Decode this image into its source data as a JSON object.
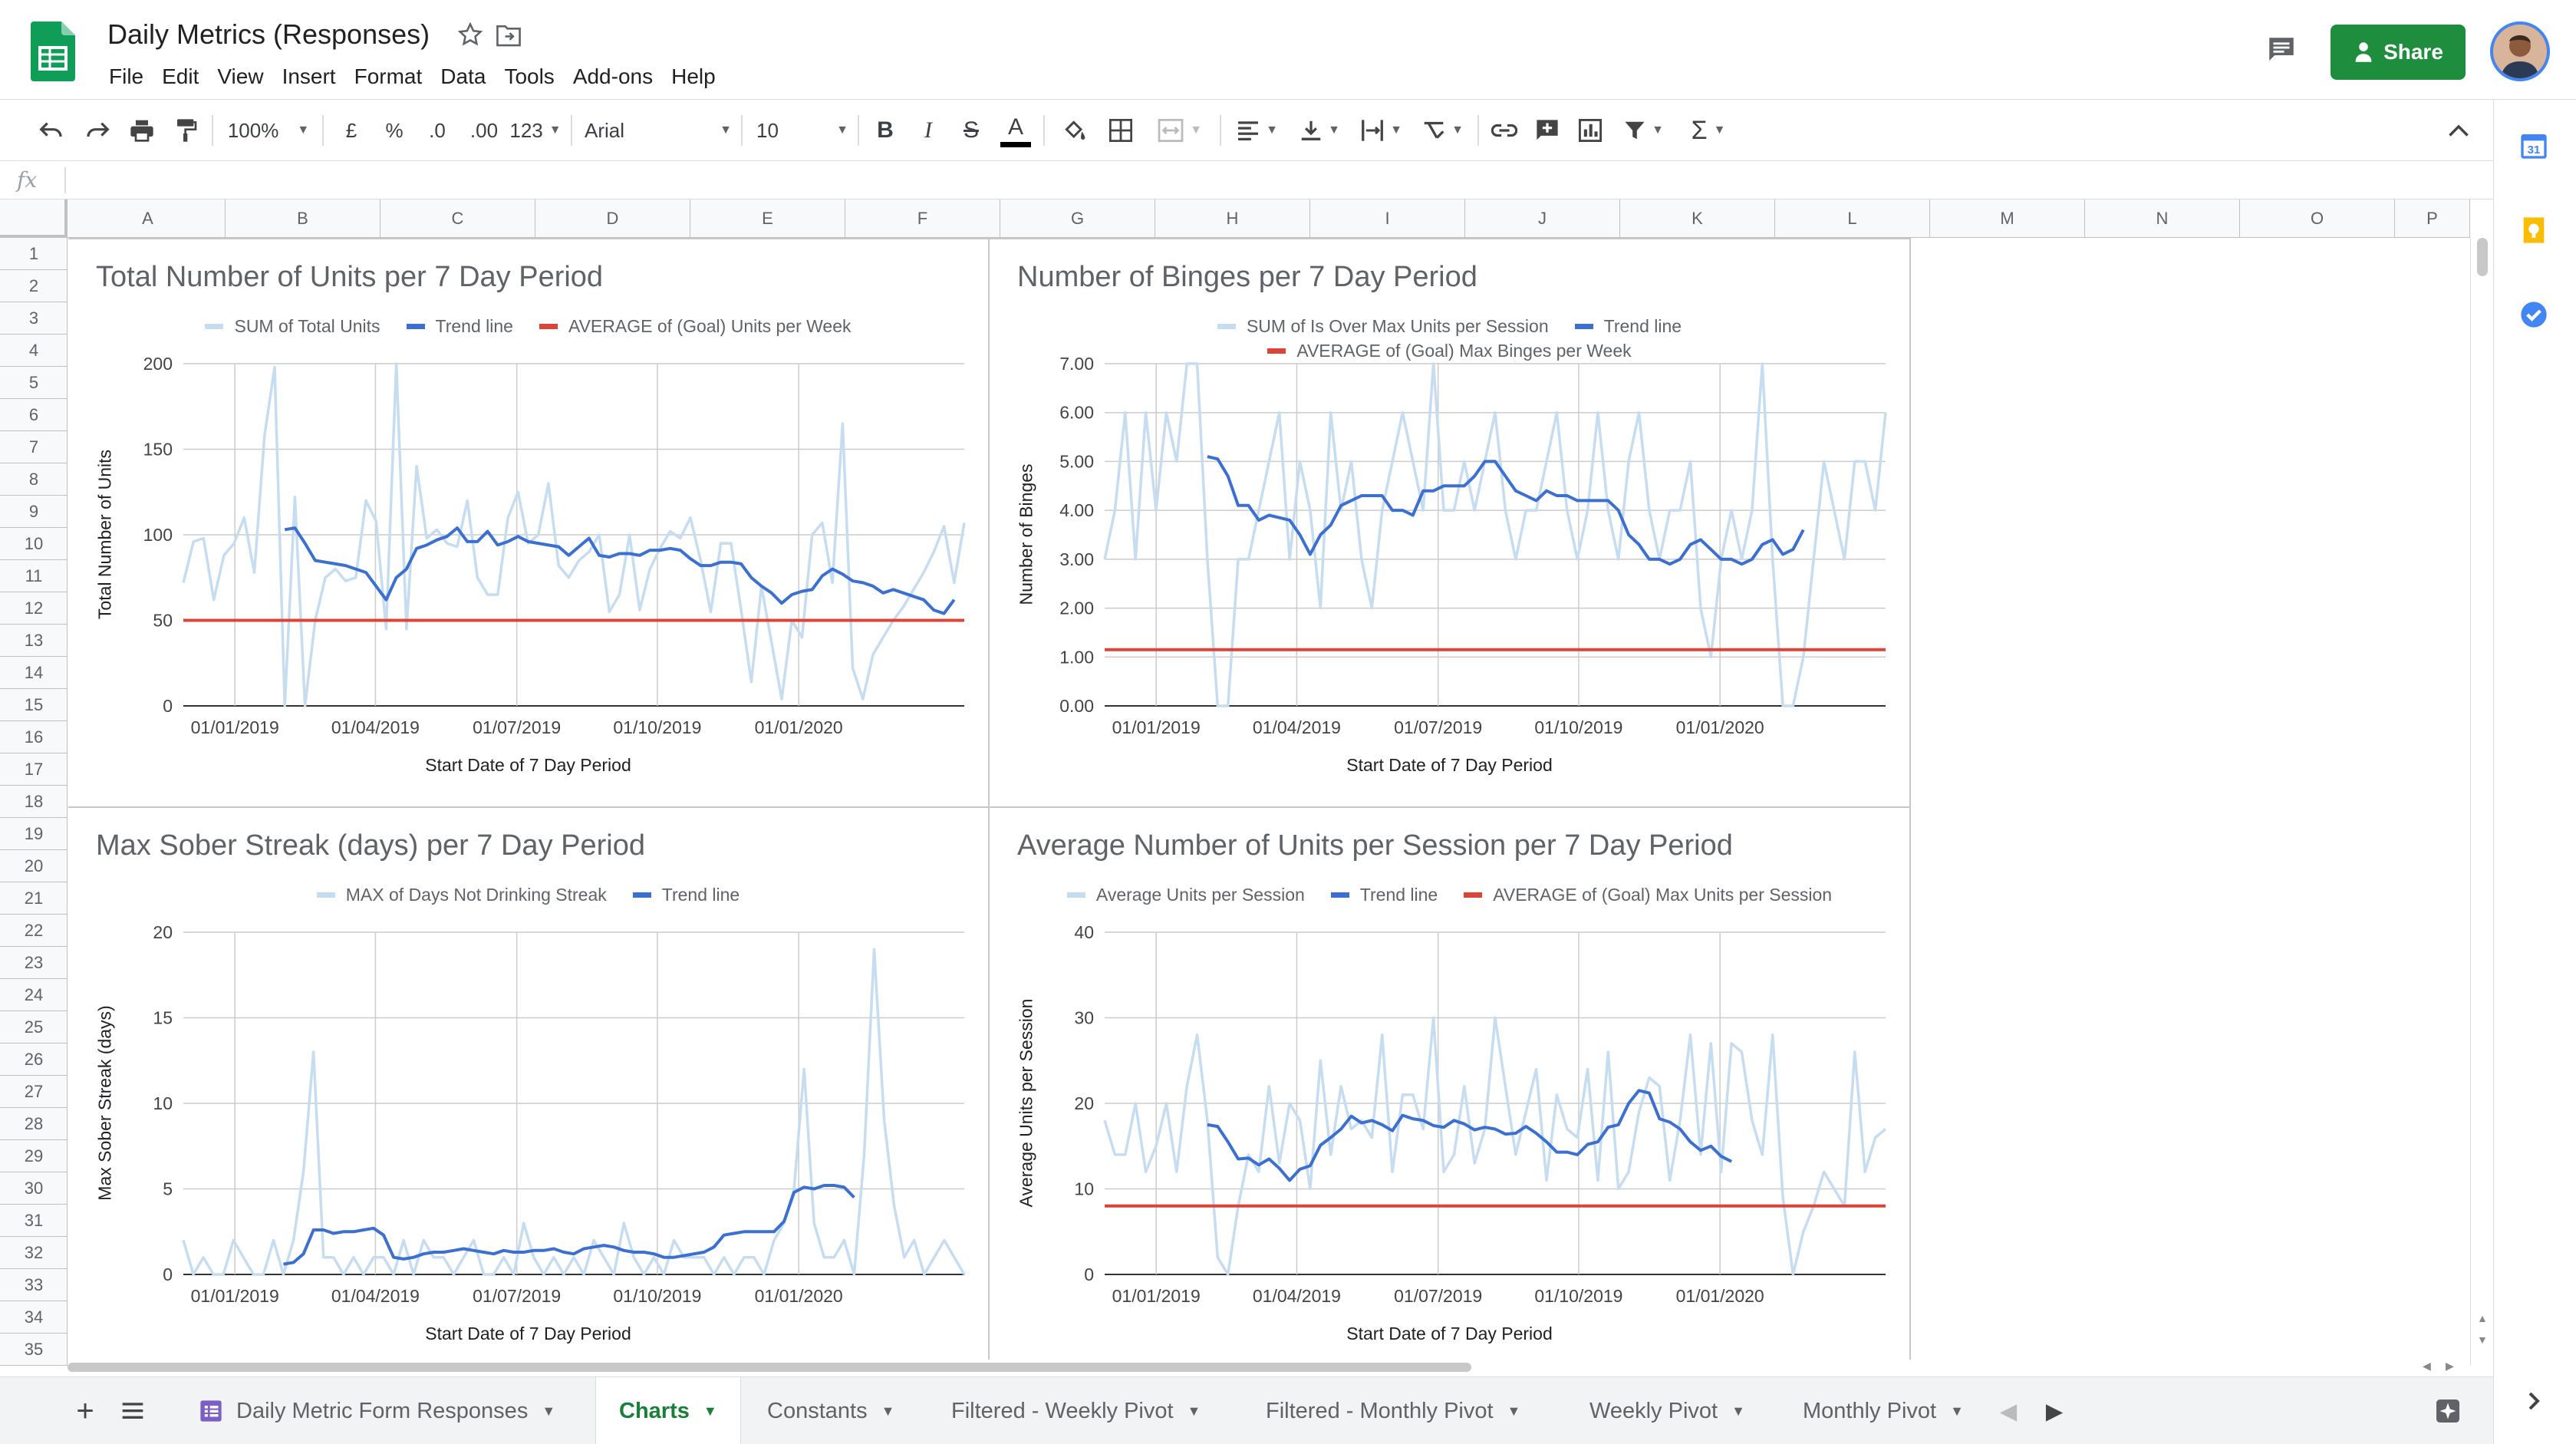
{
  "header": {
    "title": "Daily Metrics (Responses)",
    "menu": [
      "File",
      "Edit",
      "View",
      "Insert",
      "Format",
      "Data",
      "Tools",
      "Add-ons",
      "Help"
    ],
    "share_label": "Share"
  },
  "toolbar": {
    "zoom": "100%",
    "currency": "£",
    "percent": "%",
    "dec_decrease": ".0",
    "dec_increase": ".00",
    "more_formats": "123",
    "font": "Arial",
    "font_size": "10",
    "bold": "B",
    "italic": "I",
    "strike": "S",
    "text_color": "A",
    "sum": "Σ"
  },
  "formula_bar": {
    "fx": "fx",
    "value": ""
  },
  "columns": [
    "A",
    "B",
    "C",
    "D",
    "E",
    "F",
    "G",
    "H",
    "I",
    "J",
    "K",
    "L",
    "M",
    "N",
    "O",
    "P"
  ],
  "rows": [
    "1",
    "2",
    "3",
    "4",
    "5",
    "6",
    "7",
    "8",
    "9",
    "10",
    "11",
    "12",
    "13",
    "14",
    "15",
    "16",
    "17",
    "18",
    "19",
    "20",
    "21",
    "22",
    "23",
    "24",
    "25",
    "26",
    "27",
    "28",
    "29",
    "30",
    "31",
    "32",
    "33",
    "34",
    "35"
  ],
  "colors": {
    "raw_series": "#c6dcf0",
    "trend": "#3b6fd0",
    "goal": "#db4437",
    "grid": "#cccccc",
    "share_green": "#1e8e3e",
    "active_tab": "#188038"
  },
  "chart_data": [
    {
      "type": "line",
      "title": "Total Number of Units per 7 Day Period",
      "xlabel": "Start Date of 7 Day Period",
      "ylabel": "Total Number of Units",
      "x_ticks": [
        "01/01/2019",
        "01/04/2019",
        "01/07/2019",
        "01/10/2019",
        "01/01/2020"
      ],
      "y_ticks": [
        "0",
        "50",
        "100",
        "150",
        "200"
      ],
      "ylim": [
        0,
        200
      ],
      "grid": true,
      "legend_position": "top",
      "series": [
        {
          "name": "SUM of Total Units",
          "color": "#c6dcf0",
          "values": [
            72,
            96,
            98,
            62,
            88,
            95,
            110,
            78,
            158,
            198,
            0,
            122,
            0,
            50,
            75,
            80,
            73,
            75,
            120,
            108,
            45,
            200,
            45,
            140,
            98,
            103,
            95,
            93,
            120,
            75,
            65,
            65,
            110,
            125,
            95,
            100,
            130,
            82,
            75,
            85,
            90,
            100,
            55,
            65,
            100,
            56,
            80,
            92,
            102,
            98,
            110,
            85,
            55,
            95,
            95,
            56,
            14,
            70,
            37,
            4,
            50,
            40,
            100,
            107,
            72,
            165,
            22,
            4,
            30,
            40,
            50,
            58,
            68,
            78,
            90,
            105,
            72,
            107
          ]
        },
        {
          "name": "Trend line",
          "color": "#3b6fd0",
          "values": [
            null,
            null,
            null,
            null,
            null,
            null,
            null,
            null,
            null,
            null,
            103,
            104,
            95,
            85,
            84,
            83,
            82,
            80,
            78,
            70,
            62,
            75,
            80,
            92,
            94,
            97,
            99,
            104,
            96,
            96,
            102,
            94,
            96,
            99,
            96,
            95,
            94,
            93,
            88,
            93,
            98,
            88,
            87,
            89,
            89,
            88,
            91,
            91,
            92,
            91,
            86,
            82,
            82,
            84,
            84,
            83,
            75,
            70,
            66,
            60,
            65,
            67,
            68,
            76,
            80,
            77,
            73,
            72,
            70,
            66,
            68,
            66,
            64,
            62,
            56,
            54,
            62
          ]
        },
        {
          "name": "AVERAGE of (Goal) Units per Week",
          "color": "#db4437",
          "values": [
            50
          ]
        }
      ]
    },
    {
      "type": "line",
      "title": "Number of Binges per 7 Day Period",
      "xlabel": "Start Date of 7 Day Period",
      "ylabel": "Number of Binges",
      "x_ticks": [
        "01/01/2019",
        "01/04/2019",
        "01/07/2019",
        "01/10/2019",
        "01/01/2020"
      ],
      "y_ticks": [
        "0.00",
        "1.00",
        "2.00",
        "3.00",
        "4.00",
        "5.00",
        "6.00",
        "7.00"
      ],
      "ylim": [
        0,
        7
      ],
      "grid": true,
      "legend_position": "top",
      "series": [
        {
          "name": "SUM of Is Over Max Units per Session",
          "color": "#c6dcf0",
          "values": [
            3,
            4,
            6,
            3,
            6,
            4,
            6,
            5,
            7,
            7,
            3,
            0,
            0,
            3,
            3,
            4,
            5,
            6,
            3,
            5,
            4,
            2,
            6,
            4,
            5,
            3,
            2,
            4,
            5,
            6,
            5,
            4,
            7,
            4,
            4,
            5,
            4,
            5,
            6,
            4,
            3,
            4,
            4,
            5,
            6,
            4,
            3,
            4,
            6,
            4,
            3,
            5,
            6,
            4,
            3,
            4,
            4,
            5,
            2,
            1,
            3,
            4,
            3,
            4,
            7,
            3,
            0,
            0,
            1,
            3,
            5,
            4,
            3,
            5,
            5,
            4,
            6
          ]
        },
        {
          "name": "Trend line",
          "color": "#3b6fd0",
          "values": [
            null,
            null,
            null,
            null,
            null,
            null,
            null,
            null,
            null,
            null,
            5.1,
            5.05,
            4.7,
            4.1,
            4.1,
            3.8,
            3.9,
            3.85,
            3.8,
            3.5,
            3.1,
            3.5,
            3.7,
            4.1,
            4.2,
            4.3,
            4.3,
            4.3,
            4.0,
            4.0,
            3.9,
            4.4,
            4.4,
            4.5,
            4.5,
            4.5,
            4.7,
            5.0,
            5.0,
            4.7,
            4.4,
            4.3,
            4.2,
            4.4,
            4.3,
            4.3,
            4.2,
            4.2,
            4.2,
            4.2,
            4.0,
            3.5,
            3.3,
            3.0,
            3.0,
            2.9,
            3.0,
            3.3,
            3.4,
            3.2,
            3.0,
            3.0,
            2.9,
            3.0,
            3.3,
            3.4,
            3.1,
            3.2,
            3.6
          ]
        },
        {
          "name": "AVERAGE of (Goal) Max Binges per Week",
          "color": "#db4437",
          "values": [
            1.15
          ]
        }
      ]
    },
    {
      "type": "line",
      "title": "Max Sober Streak (days) per 7 Day Period",
      "xlabel": "Start Date of 7 Day Period",
      "ylabel": "Max Sober Streak (days)",
      "x_ticks": [
        "01/01/2019",
        "01/04/2019",
        "01/07/2019",
        "01/10/2019",
        "01/01/2020"
      ],
      "y_ticks": [
        "0",
        "5",
        "10",
        "15",
        "20"
      ],
      "ylim": [
        0,
        20
      ],
      "grid": true,
      "legend_position": "top",
      "series": [
        {
          "name": "MAX of Days Not Drinking Streak",
          "color": "#c6dcf0",
          "values": [
            2,
            0,
            1,
            0,
            0,
            2,
            1,
            0,
            0,
            2,
            0,
            2,
            6,
            13,
            1,
            1,
            0,
            1,
            0,
            1,
            1,
            0,
            2,
            0,
            2,
            1,
            1,
            0,
            1,
            2,
            0,
            0,
            1,
            0,
            3,
            1,
            0,
            1,
            0,
            1,
            0,
            2,
            1,
            0,
            3,
            1,
            0,
            1,
            0,
            2,
            1,
            1,
            1,
            0,
            1,
            0,
            1,
            1,
            0,
            2,
            3,
            5,
            12,
            3,
            1,
            1,
            2,
            0,
            7,
            19,
            9,
            4,
            1,
            2,
            0,
            1,
            2,
            1,
            0
          ]
        },
        {
          "name": "Trend line",
          "color": "#3b6fd0",
          "values": [
            null,
            null,
            null,
            null,
            null,
            null,
            null,
            null,
            null,
            null,
            0.6,
            0.7,
            1.2,
            2.6,
            2.6,
            2.4,
            2.5,
            2.5,
            2.6,
            2.7,
            2.3,
            1.0,
            0.9,
            1.0,
            1.2,
            1.3,
            1.3,
            1.4,
            1.5,
            1.4,
            1.3,
            1.2,
            1.4,
            1.3,
            1.3,
            1.4,
            1.4,
            1.5,
            1.3,
            1.2,
            1.5,
            1.6,
            1.7,
            1.6,
            1.4,
            1.3,
            1.3,
            1.2,
            1.0,
            1.0,
            1.1,
            1.2,
            1.3,
            1.6,
            2.3,
            2.4,
            2.5,
            2.5,
            2.5,
            2.5,
            3.1,
            4.8,
            5.1,
            5.0,
            5.2,
            5.2,
            5.1,
            4.5
          ]
        }
      ]
    },
    {
      "type": "line",
      "title": "Average Number of Units per Session per 7 Day Period",
      "xlabel": "Start Date of 7 Day Period",
      "ylabel": "Average Units per Session",
      "x_ticks": [
        "01/01/2019",
        "01/04/2019",
        "01/07/2019",
        "01/10/2019",
        "01/01/2020"
      ],
      "y_ticks": [
        "0",
        "10",
        "20",
        "30",
        "40"
      ],
      "ylim": [
        0,
        40
      ],
      "grid": true,
      "legend_position": "top",
      "series": [
        {
          "name": "Average Units per Session",
          "color": "#c6dcf0",
          "values": [
            18,
            14,
            14,
            20,
            12,
            15,
            20,
            12,
            22,
            28,
            18,
            2,
            0,
            8,
            14,
            12,
            22,
            13,
            20,
            18,
            10,
            25,
            14,
            22,
            17,
            18,
            16,
            28,
            12,
            21,
            21,
            17,
            30,
            12,
            14,
            22,
            13,
            17,
            30,
            22,
            14,
            19,
            24,
            11,
            21,
            17,
            16,
            24,
            11,
            26,
            10,
            12,
            19,
            23,
            22,
            11,
            18,
            28,
            14,
            27,
            12,
            27,
            26,
            18,
            14,
            28,
            9,
            0,
            5,
            8,
            12,
            10,
            8,
            26,
            12,
            16,
            17
          ]
        },
        {
          "name": "Trend line",
          "color": "#3b6fd0",
          "values": [
            null,
            null,
            null,
            null,
            null,
            null,
            null,
            null,
            null,
            null,
            17.5,
            17.3,
            15.5,
            13.5,
            13.6,
            12.8,
            13.5,
            12.4,
            11.0,
            12.3,
            12.7,
            15.1,
            16.0,
            17.0,
            18.5,
            17.7,
            18.0,
            17.5,
            16.8,
            18.6,
            18.2,
            18.0,
            17.4,
            17.2,
            18.0,
            17.6,
            16.9,
            17.2,
            17.0,
            16.4,
            16.5,
            17.3,
            16.5,
            15.5,
            14.3,
            14.3,
            14.0,
            15.2,
            15.5,
            17.2,
            17.5,
            20.0,
            21.5,
            21.2,
            18.2,
            17.8,
            17.0,
            15.5,
            14.5,
            15.0,
            13.8,
            13.2
          ]
        },
        {
          "name": "AVERAGE of (Goal) Max Units per Session",
          "color": "#db4437",
          "values": [
            8
          ]
        }
      ]
    }
  ],
  "tabs": [
    {
      "label": "Daily Metric Form Responses",
      "active": false
    },
    {
      "label": "Charts",
      "active": true
    },
    {
      "label": "Constants",
      "active": false
    },
    {
      "label": "Filtered - Weekly Pivot",
      "active": false
    },
    {
      "label": "Filtered - Monthly Pivot",
      "active": false
    },
    {
      "label": "Weekly Pivot",
      "active": false
    },
    {
      "label": "Monthly Pivot",
      "active": false
    }
  ]
}
